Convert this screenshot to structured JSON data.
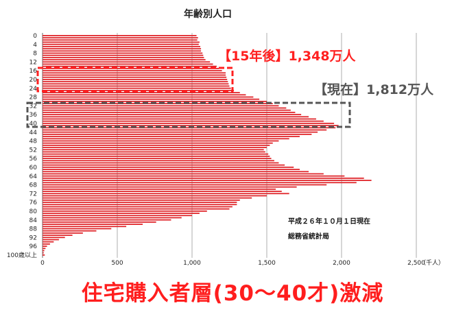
{
  "chart_data": {
    "type": "bar",
    "orientation": "horizontal",
    "title": "年齢別人口",
    "unit_label": "（千人）",
    "x_ticks": [
      "0",
      "500",
      "1,000",
      "1,500",
      "2,000",
      "2,500"
    ],
    "xlim": [
      0,
      2500
    ],
    "grid": true,
    "age_labels": [
      "0",
      "4",
      "8",
      "12",
      "16",
      "20",
      "24",
      "28",
      "32",
      "36",
      "40",
      "44",
      "48",
      "52",
      "56",
      "60",
      "64",
      "68",
      "72",
      "76",
      "80",
      "84",
      "88",
      "92",
      "96",
      "100歳以上"
    ],
    "ages": [
      0,
      1,
      2,
      3,
      4,
      5,
      6,
      7,
      8,
      9,
      10,
      11,
      12,
      13,
      14,
      15,
      16,
      17,
      18,
      19,
      20,
      21,
      22,
      23,
      24,
      25,
      26,
      27,
      28,
      29,
      30,
      31,
      32,
      33,
      34,
      35,
      36,
      37,
      38,
      39,
      40,
      41,
      42,
      43,
      44,
      45,
      46,
      47,
      48,
      49,
      50,
      51,
      52,
      53,
      54,
      55,
      56,
      57,
      58,
      59,
      60,
      61,
      62,
      63,
      64,
      65,
      66,
      67,
      68,
      69,
      70,
      71,
      72,
      73,
      74,
      75,
      76,
      77,
      78,
      79,
      80,
      81,
      82,
      83,
      84,
      85,
      86,
      87,
      88,
      89,
      90,
      91,
      92,
      93,
      94,
      95,
      96,
      97,
      98,
      99,
      100
    ],
    "values": [
      1030,
      1040,
      1035,
      1050,
      1045,
      1055,
      1060,
      1060,
      1070,
      1075,
      1080,
      1090,
      1120,
      1140,
      1165,
      1180,
      1200,
      1225,
      1225,
      1230,
      1235,
      1240,
      1245,
      1250,
      1260,
      1280,
      1320,
      1360,
      1410,
      1450,
      1500,
      1540,
      1580,
      1630,
      1660,
      1690,
      1730,
      1780,
      1830,
      1880,
      1950,
      1980,
      1960,
      1900,
      1840,
      1800,
      1720,
      1650,
      1580,
      1540,
      1520,
      1500,
      1480,
      1490,
      1510,
      1520,
      1530,
      1550,
      1580,
      1620,
      1680,
      1720,
      1780,
      1880,
      2020,
      2150,
      2200,
      2100,
      1900,
      1700,
      1560,
      1600,
      1650,
      1500,
      1400,
      1320,
      1300,
      1300,
      1270,
      1250,
      1100,
      1050,
      1000,
      930,
      860,
      760,
      670,
      560,
      460,
      360,
      270,
      200,
      150,
      110,
      75,
      50,
      30,
      20,
      12,
      8,
      15
    ]
  },
  "annotations": {
    "future": {
      "label": "【15年後】1,348万人",
      "color": "#ff2020"
    },
    "current": {
      "label": "【現在】1,812万人",
      "color": "#555555"
    }
  },
  "source_note": [
    "平成２６年１０月１日現在",
    "総務省統計局"
  ],
  "headline": "住宅購入者層(30～40才)激減"
}
